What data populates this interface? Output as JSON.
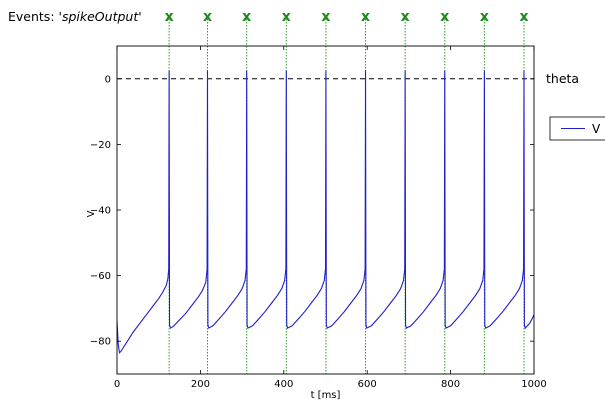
{
  "events_title": {
    "prefix": "Events: '",
    "name": "spikeOutput",
    "suffix": "'"
  },
  "event_marker": "x",
  "colors": {
    "trace": "#1f1fcc",
    "event": "#2ca02c",
    "marker": "#1b8a1b",
    "threshold": "#000000"
  },
  "chart_data": {
    "type": "line",
    "title": "",
    "xlabel": "t [ms]",
    "ylabel": "V",
    "xlim": [
      0,
      1000
    ],
    "ylim": [
      -90,
      10
    ],
    "xticks": [
      0,
      200,
      400,
      600,
      800,
      1000
    ],
    "yticks": [
      -80,
      -60,
      -40,
      -20,
      0
    ],
    "xtick_labels": [
      "0",
      "200",
      "400",
      "600",
      "800",
      "1000"
    ],
    "ytick_labels": [
      "−80",
      "−60",
      "−40",
      "−20",
      "0"
    ],
    "grid": false,
    "legend": {
      "placement": "right",
      "entries": [
        "V"
      ]
    },
    "threshold": {
      "label": "theta",
      "value": 0
    },
    "series": [
      {
        "name": "V",
        "x": [
          0,
          3,
          6,
          10,
          15,
          20,
          30,
          40,
          55,
          70,
          85,
          100,
          110,
          118,
          122,
          124,
          125,
          126,
          128,
          135,
          150,
          165,
          180,
          195,
          205,
          213,
          216,
          217,
          218,
          220,
          230,
          245,
          260,
          275,
          290,
          300,
          307,
          310,
          311,
          312,
          314,
          325,
          340,
          355,
          370,
          385,
          395,
          402,
          405,
          406,
          407,
          409,
          420,
          435,
          450,
          465,
          480,
          490,
          497,
          500,
          501,
          502,
          504,
          515,
          530,
          545,
          560,
          575,
          585,
          592,
          595,
          596,
          597,
          599,
          610,
          625,
          640,
          655,
          670,
          680,
          687,
          690,
          691,
          692,
          694,
          705,
          720,
          735,
          750,
          765,
          775,
          782,
          785,
          786,
          787,
          789,
          800,
          815,
          830,
          845,
          860,
          870,
          877,
          880,
          881,
          882,
          884,
          895,
          910,
          925,
          940,
          955,
          965,
          972,
          975,
          976,
          977,
          979,
          990,
          1000
        ],
        "y": [
          -74,
          -81,
          -83.5,
          -83,
          -82,
          -81,
          -79,
          -77,
          -74.5,
          -72,
          -69.5,
          -67,
          -65,
          -63,
          -61,
          -58,
          2.5,
          -75,
          -76,
          -75.5,
          -73.5,
          -71.5,
          -69,
          -66.5,
          -64.5,
          -62,
          -58,
          2.5,
          -75,
          -76,
          -75.3,
          -73.2,
          -71,
          -68.5,
          -66,
          -64,
          -61.5,
          -58,
          2.5,
          -75,
          -76,
          -75.3,
          -73.2,
          -71,
          -68.5,
          -66,
          -64,
          -61.5,
          -58,
          2.5,
          -75,
          -76,
          -75.3,
          -73.2,
          -71,
          -68.5,
          -66,
          -64,
          -61.5,
          -58,
          2.5,
          -75,
          -76,
          -75.3,
          -73.2,
          -71,
          -68.5,
          -66,
          -64,
          -61.5,
          -58,
          2.5,
          -75,
          -76,
          -75.3,
          -73.2,
          -71,
          -68.5,
          -66,
          -64,
          -61.5,
          -58,
          2.5,
          -75,
          -76,
          -75.3,
          -73.2,
          -71,
          -68.5,
          -66,
          -64,
          -61.5,
          -58,
          2.5,
          -75,
          -76,
          -75.3,
          -73.2,
          -71,
          -68.5,
          -66,
          -64,
          -61.5,
          -58,
          2.5,
          -75,
          -76,
          -75.3,
          -73.2,
          -71,
          -68.5,
          -66,
          -64,
          -61.5,
          -58,
          2.5,
          -75,
          -76,
          -74.5,
          -72
        ]
      }
    ],
    "events": {
      "name": "spikeOutput",
      "times": [
        125,
        217,
        311,
        406,
        501,
        596,
        691,
        786,
        881,
        976
      ]
    }
  }
}
